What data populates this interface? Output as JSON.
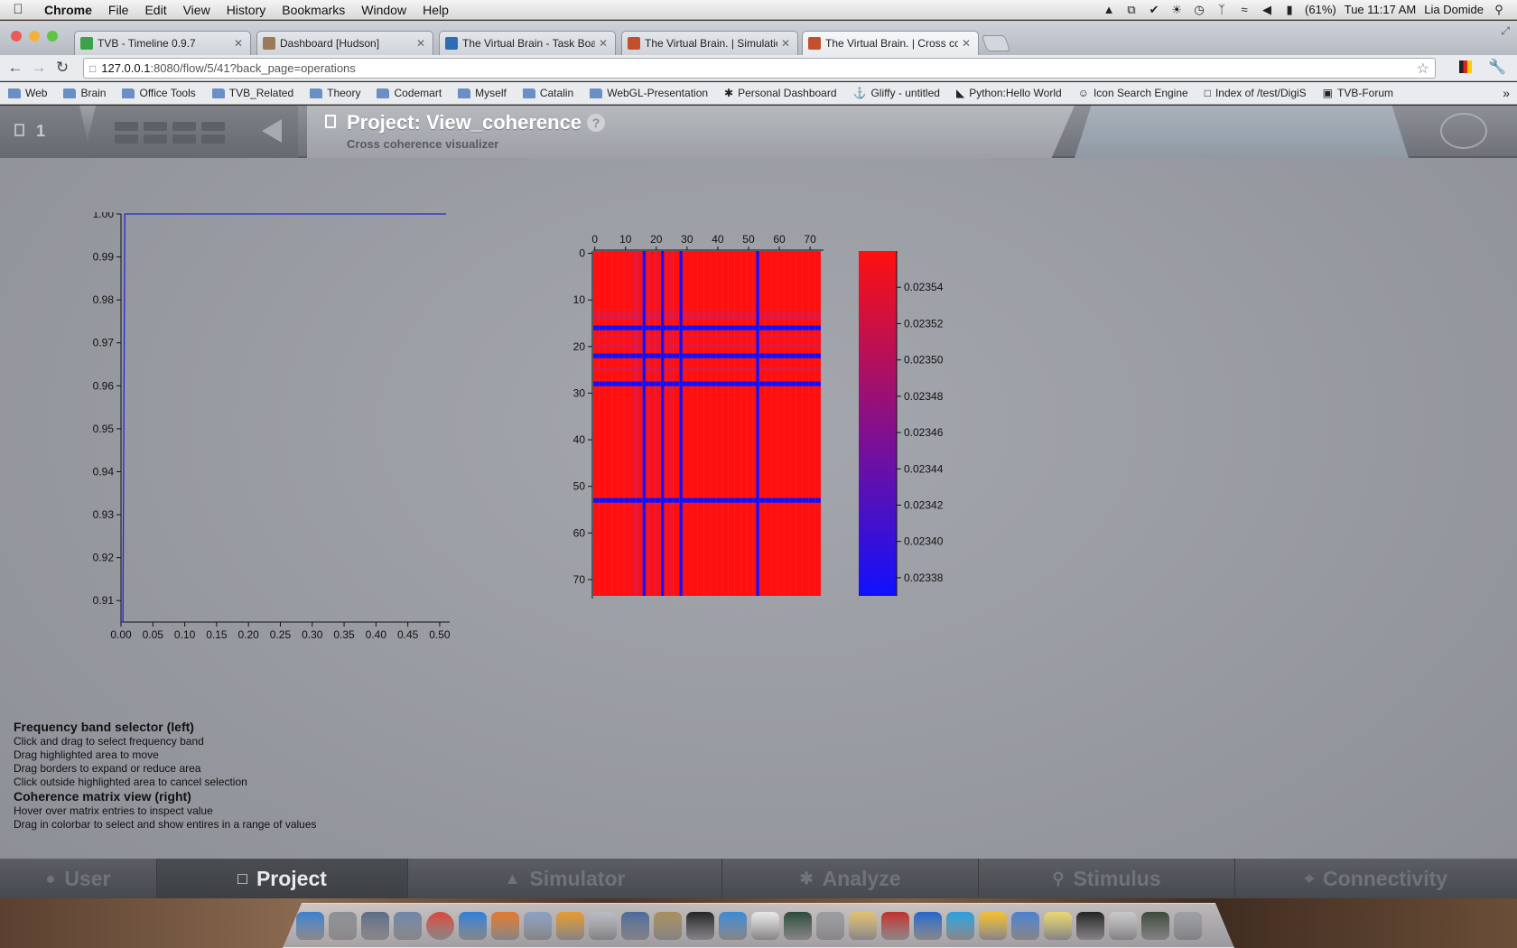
{
  "menubar": {
    "app_name": "Chrome",
    "menus": [
      "File",
      "Edit",
      "View",
      "History",
      "Bookmarks",
      "Window",
      "Help"
    ],
    "battery": "(61%)",
    "clock": "Tue 11:17 AM",
    "user": "Lia Domide"
  },
  "tabs": [
    {
      "title": "TVB - Timeline 0.9.7",
      "favicon_color": "#3aa34a"
    },
    {
      "title": "Dashboard [Hudson]",
      "favicon_color": "#9b7a5a"
    },
    {
      "title": "The Virtual Brain - Task Boar",
      "favicon_color": "#2a6fb5"
    },
    {
      "title": "The Virtual Brain. | Simulatio",
      "favicon_color": "#c2502c"
    },
    {
      "title": "The Virtual Brain. | Cross col",
      "favicon_color": "#c2502c"
    }
  ],
  "url": {
    "host": "127.0.0.1",
    "path": ":8080/flow/5/41?back_page=operations"
  },
  "bookmarks": [
    {
      "label": "Web",
      "icon": "folder-icon"
    },
    {
      "label": "Brain",
      "icon": "folder-icon"
    },
    {
      "label": "Office Tools",
      "icon": "folder-icon"
    },
    {
      "label": "TVB_Related",
      "icon": "folder-icon"
    },
    {
      "label": "Theory",
      "icon": "folder-icon"
    },
    {
      "label": "Codemart",
      "icon": "folder-icon"
    },
    {
      "label": "Myself",
      "icon": "folder-icon"
    },
    {
      "label": "Catalin",
      "icon": "folder-icon"
    },
    {
      "label": "WebGL-Presentation",
      "icon": "folder-icon"
    },
    {
      "label": "Personal Dashboard",
      "icon": "tvb-icon"
    },
    {
      "label": "Gliffy - untitled",
      "icon": "gliffy-icon"
    },
    {
      "label": "Python:Hello World",
      "icon": "python-icon"
    },
    {
      "label": "Icon Search Engine",
      "icon": "search-engine-icon"
    },
    {
      "label": "Index of /test/DigiS",
      "icon": "page-icon"
    },
    {
      "label": "TVB-Forum",
      "icon": "forum-icon"
    }
  ],
  "header": {
    "count": "1",
    "project_title": "Project: View_coherence",
    "subtitle": "Cross coherence visualizer",
    "help": "?"
  },
  "line_chart": {
    "chart_data": {
      "type": "line",
      "x": [
        0.0,
        0.003,
        0.006,
        0.51
      ],
      "y": [
        0.905,
        0.9,
        1.0,
        1.0
      ],
      "xlim": [
        0.0,
        0.51
      ],
      "ylim": [
        0.905,
        1.0
      ],
      "xticks": [
        "0.00",
        "0.05",
        "0.10",
        "0.15",
        "0.20",
        "0.25",
        "0.30",
        "0.35",
        "0.40",
        "0.45",
        "0.50"
      ],
      "yticks": [
        "0.91",
        "0.92",
        "0.93",
        "0.94",
        "0.95",
        "0.96",
        "0.97",
        "0.98",
        "0.99",
        "1.00"
      ],
      "line_color": "#1f2ad6"
    }
  },
  "matrix_chart": {
    "chart_data": {
      "type": "heatmap",
      "size": 74,
      "base_value": 0.02356,
      "low_rows_cols": [
        16,
        22,
        28,
        53
      ],
      "faint_rows_cols": [
        13,
        14,
        18,
        20,
        25
      ],
      "xticks": [
        "0",
        "10",
        "20",
        "30",
        "40",
        "50",
        "60",
        "70"
      ],
      "yticks": [
        "0",
        "10",
        "20",
        "30",
        "40",
        "50",
        "60",
        "70"
      ],
      "colorbar_ticks": [
        "0.02354",
        "0.02352",
        "0.02350",
        "0.02348",
        "0.02346",
        "0.02344",
        "0.02342",
        "0.02340",
        "0.02338"
      ],
      "colorbar_range": [
        0.02337,
        0.02356
      ],
      "color_high": "#ff1010",
      "color_low": "#1010ff"
    }
  },
  "instructions": {
    "left_heading": "Frequency band selector (left)",
    "left_lines": [
      "Click and drag to select frequency band",
      "Drag highlighted area to move",
      "Drag borders to expand or reduce area",
      "Click outside highlighted area to cancel selection"
    ],
    "right_heading": "Coherence matrix view (right)",
    "right_lines": [
      "Hover over matrix entries to inspect value",
      "Drag in colorbar to select and show entires in a range of values"
    ]
  },
  "bottom_nav": [
    {
      "label": "User",
      "icon": "user-icon",
      "active": false
    },
    {
      "label": "Project",
      "icon": "project-icon",
      "active": true
    },
    {
      "label": "Simulator",
      "icon": "simulator-icon",
      "active": false
    },
    {
      "label": "Analyze",
      "icon": "analyze-icon",
      "active": false
    },
    {
      "label": "Stimulus",
      "icon": "stimulus-icon",
      "active": false
    },
    {
      "label": "Connectivity",
      "icon": "connectivity-icon",
      "active": false
    }
  ],
  "dock_colors": [
    "#3b7fd1",
    "#8a8f96",
    "#5a6c86",
    "#6e84a8",
    "#d8473c",
    "#2f7fd8",
    "#e2782a",
    "#8aa1c4",
    "#e69a2e",
    "#b8bcc4",
    "#4a6a9c",
    "#a88e5c",
    "#222428",
    "#3b8ad6",
    "#e8e8e8",
    "#2a4a3a",
    "#9a9ca2",
    "#e0c070",
    "#c0302c",
    "#2266cc",
    "#28a0e0",
    "#f4c030",
    "#4a7fd0",
    "#e8d870",
    "#222222",
    "#c8c8cc",
    "#3a4a3a",
    "#9ca0a6"
  ]
}
